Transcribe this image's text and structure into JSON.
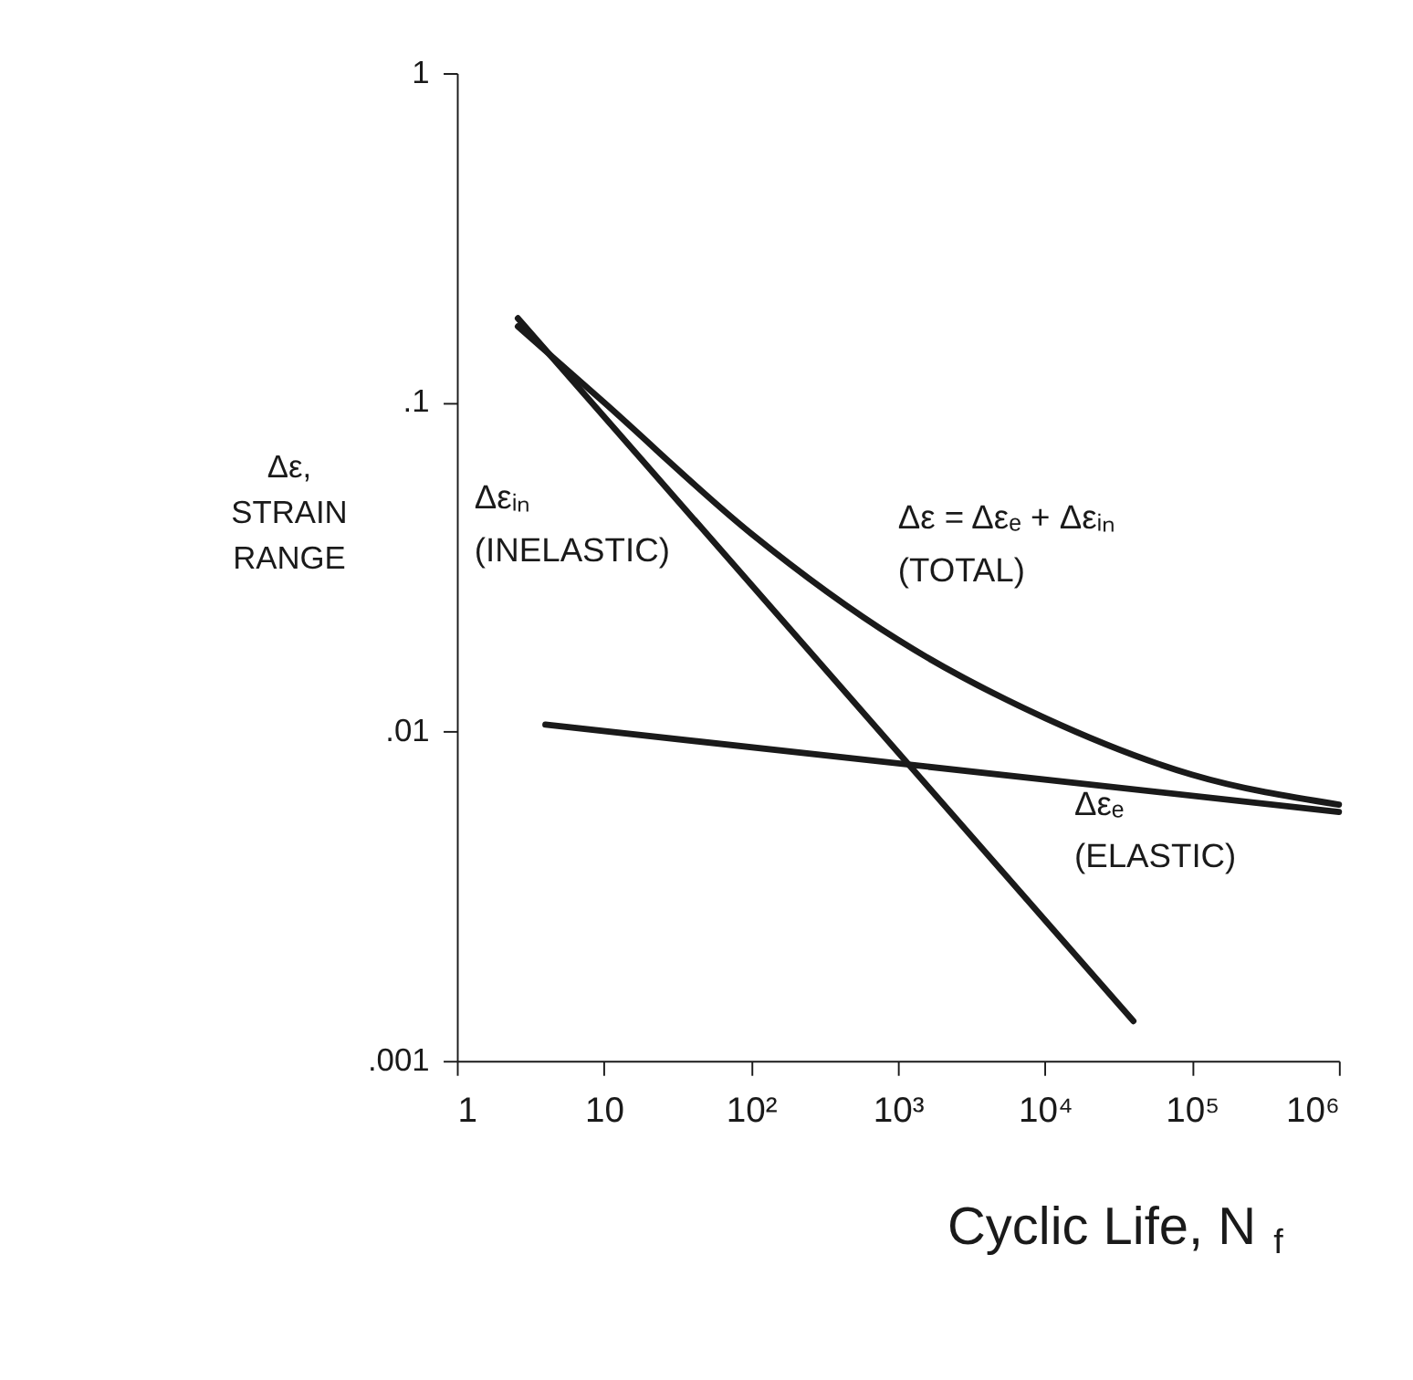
{
  "chart_data": {
    "type": "line",
    "xlabel": "Cyclic Life, N$_{f}$",
    "ylabel": "Δε,\nSTRAIN\nRANGE",
    "log": "xy",
    "xlim": [
      1,
      1000000
    ],
    "ylim": [
      0.001,
      1
    ],
    "xticks": [
      1,
      10,
      {
        "value": 100,
        "label": "10²"
      },
      {
        "value": 1000,
        "label": "10³"
      },
      {
        "value": 10000,
        "label": "10⁴"
      },
      {
        "value": 100000,
        "label": "10⁵"
      },
      {
        "value": 1000000,
        "label": "10⁶"
      }
    ],
    "yticks": [
      {
        "value": 0.001,
        "label": ".001"
      },
      {
        "value": 0.01,
        "label": ".01"
      },
      {
        "value": 0.1,
        "label": ".1"
      },
      1
    ],
    "grid": false,
    "marker": "none",
    "line_style": "solid",
    "series": [
      {
        "name": "Δεₑ\n(ELASTIC)",
        "color": "#1a1a1a",
        "x": [
          4,
          1000000
        ],
        "values": [
          0.0105,
          0.0057
        ]
      },
      {
        "name": "Δεᵢₙ\n(INELASTIC)",
        "color": "#1a1a1a",
        "x": [
          2.6,
          40000
        ],
        "values": [
          0.18,
          0.00132
        ]
      },
      {
        "name": "Δε = Δεₑ + Δεᵢₙ\n(TOTAL)",
        "color": "#1a1a1a",
        "x": [
          2.6,
          10,
          100,
          1000,
          10000,
          100000,
          1000000
        ],
        "values": [
          0.17,
          0.1,
          0.04,
          0.019,
          0.011,
          0.0074,
          0.006
        ]
      }
    ]
  }
}
